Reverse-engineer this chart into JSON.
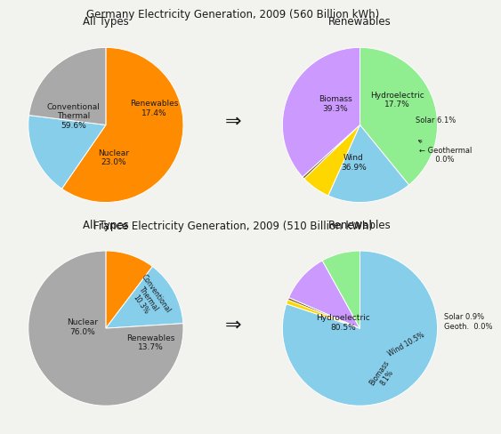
{
  "germany_title": "Germany Electricity Generation, 2009 (560 Billion kWh)",
  "france_title": "France Electricity Generation, 2009 (510 Billion kWh)",
  "subtitle_all": "All Types",
  "subtitle_renewables": "Renewables",
  "de_all_values": [
    59.6,
    17.4,
    23.0
  ],
  "de_all_colors": [
    "#FF8C00",
    "#87CEEB",
    "#A9A9A9"
  ],
  "de_all_startangle": 90,
  "de_ren_values": [
    39.3,
    17.7,
    6.1,
    0.5,
    36.9
  ],
  "de_ren_colors": [
    "#90EE90",
    "#87CEEB",
    "#FFD700",
    "#8B6914",
    "#CC99FF"
  ],
  "de_ren_startangle": 90,
  "fr_all_values": [
    10.3,
    13.7,
    76.0
  ],
  "fr_all_colors": [
    "#FF8C00",
    "#87CEEB",
    "#A9A9A9"
  ],
  "fr_all_startangle": 90,
  "fr_ren_values": [
    80.5,
    0.9,
    0.5,
    10.5,
    8.1
  ],
  "fr_ren_colors": [
    "#87CEEB",
    "#FFD700",
    "#8B6914",
    "#CC99FF",
    "#90EE90"
  ],
  "fr_ren_startangle": 90,
  "arrow_symbol": "⇒",
  "bg_color": "#F2F2EE",
  "text_color": "#1A1A1A"
}
